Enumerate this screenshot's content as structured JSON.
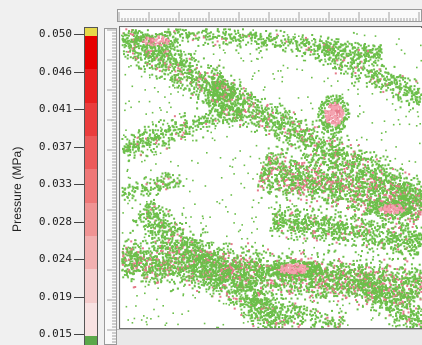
{
  "colorbar": {
    "title": "Pressure (MPa)",
    "ticks": [
      "0.050",
      "0.046",
      "0.041",
      "0.037",
      "0.033",
      "0.028",
      "0.024",
      "0.019",
      "0.015"
    ],
    "top_swatch_color": "#e6d94a",
    "bottom_swatch_color": "#5ca84a",
    "scale_colors": [
      "#e60000",
      "#e82020",
      "#ea3d3d",
      "#ec5a5a",
      "#ee7777",
      "#f09494",
      "#f2b0b0",
      "#f5cccc",
      "#f8e2e2"
    ]
  },
  "plot": {
    "background": "#ffffff",
    "low_color": "#6cbf4a",
    "high_color": "#e57a8a",
    "peak_color": "#f4a3b0"
  }
}
